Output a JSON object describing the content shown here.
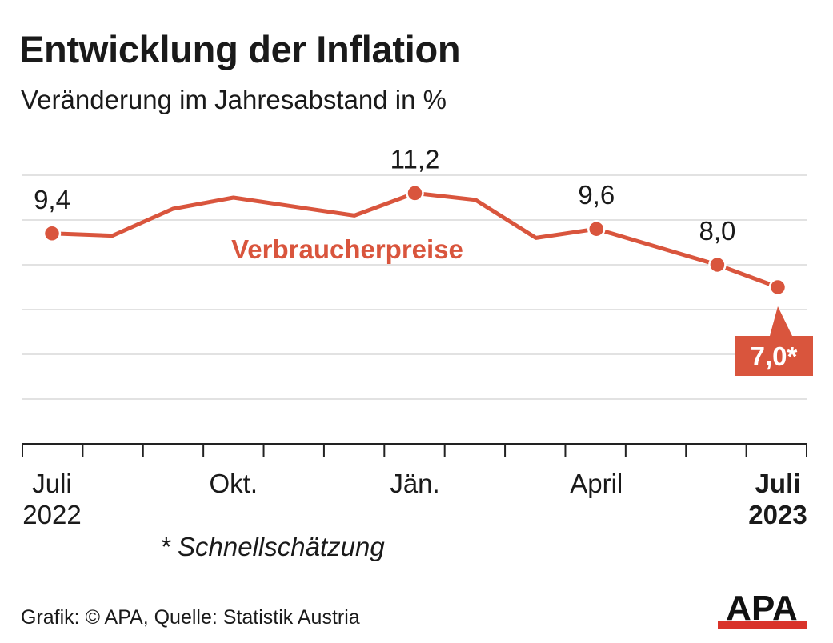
{
  "title": "Entwicklung der Inflation",
  "subtitle": "Veränderung im Jahresabstand in %",
  "footnote": "* Schnellschätzung",
  "source": "Grafik: © APA, Quelle: Statistik Austria",
  "logo_text": "APA",
  "colors": {
    "series": "#d9553d",
    "grid": "#d8d8d8",
    "axis": "#222222",
    "text": "#1a1a1a"
  },
  "chart_data": {
    "type": "line",
    "title": "Entwicklung der Inflation",
    "subtitle": "Veränderung im Jahresabstand in %",
    "x": [
      "2022-07",
      "2022-08",
      "2022-09",
      "2022-10",
      "2022-11",
      "2022-12",
      "2023-01",
      "2023-02",
      "2023-03",
      "2023-04",
      "2023-05",
      "2023-06",
      "2023-07"
    ],
    "series": [
      {
        "name": "Verbraucherpreise",
        "values": [
          9.4,
          9.3,
          10.5,
          11.0,
          10.6,
          10.2,
          11.2,
          10.9,
          9.2,
          9.6,
          8.8,
          8.0,
          7.0
        ],
        "labels": [
          {
            "x": "2022-07",
            "text": "9,4"
          },
          {
            "x": "2023-01",
            "text": "11,2"
          },
          {
            "x": "2023-04",
            "text": "9,6"
          },
          {
            "x": "2023-06",
            "text": "8,0"
          },
          {
            "x": "2023-07",
            "text": "7,0*",
            "highlight": true
          }
        ]
      }
    ],
    "tick_labels": [
      {
        "x": "2022-07",
        "lines": [
          "Juli",
          "2022"
        ],
        "bold": false
      },
      {
        "x": "2022-10",
        "lines": [
          "Okt."
        ],
        "bold": false
      },
      {
        "x": "2023-01",
        "lines": [
          "Jän."
        ],
        "bold": false
      },
      {
        "x": "2023-04",
        "lines": [
          "April"
        ],
        "bold": false
      },
      {
        "x": "2023-07",
        "lines": [
          "Juli",
          "2023"
        ],
        "bold": true
      }
    ],
    "ylim": [
      0,
      12
    ],
    "grid": true,
    "gridlines": [
      2,
      4,
      6,
      8,
      10,
      12
    ],
    "legend": "inline"
  }
}
